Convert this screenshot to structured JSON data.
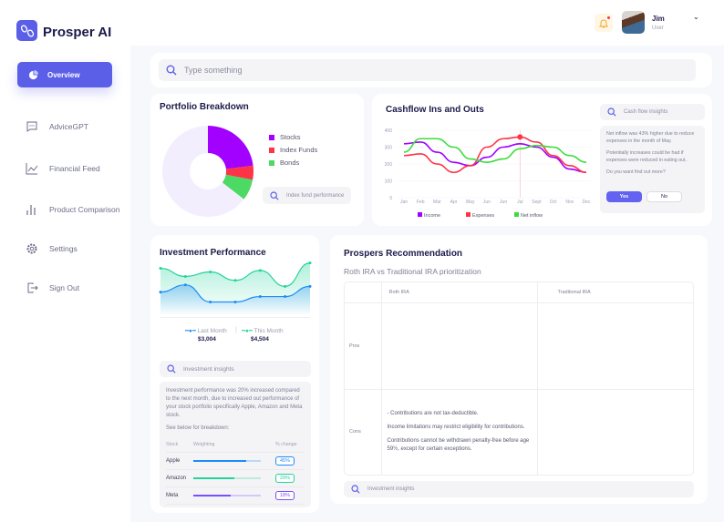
{
  "app": {
    "name": "Prosper AI"
  },
  "user": {
    "name": "Jim",
    "role": "User"
  },
  "sidebar": {
    "items": [
      {
        "label": "Overview",
        "icon": "pie-chart-icon",
        "active": true
      },
      {
        "label": "AdviceGPT",
        "icon": "chat-icon"
      },
      {
        "label": "Financial Feed",
        "icon": "line-chart-icon"
      },
      {
        "label": "Product Comparison",
        "icon": "bar-chart-icon"
      },
      {
        "label": "Settings",
        "icon": "gear-icon"
      },
      {
        "label": "Sign Out",
        "icon": "sign-out-icon"
      }
    ]
  },
  "search": {
    "placeholder": "Type something"
  },
  "portfolio": {
    "title": "Portfolio Breakdown",
    "search_placeholder": "Index fund performance"
  },
  "cashflow": {
    "title": "Cashflow Ins and Outs",
    "insights_placeholder": "Cash flow insights",
    "insight_1": "Net inflow was 43% higher due to reduce expenses in the month of May.",
    "insight_2": "Potentially increases could be had if expenses were reduced in eating out.",
    "question": "Do you want find out more?",
    "yes_label": "Yes",
    "no_label": "No"
  },
  "investment": {
    "title": "Investment Performance",
    "legend": [
      {
        "label": "Last Month",
        "value": "$3,004"
      },
      {
        "label": "This Month",
        "value": "$4,504"
      }
    ],
    "insights_placeholder": "Investment insights",
    "summary": "Investment performance was 20% increased compared to the next month, due to increased out performance of your stock portfolio specifically Apple, Amazon and Meta stock.",
    "breakdown_label": "See below for breakdown:",
    "headers": [
      "Stock",
      "Weighting",
      "% change"
    ],
    "stocks": [
      {
        "name": "Apple",
        "weighting": 0.78,
        "change": "45%",
        "color": "#1d8cf8"
      },
      {
        "name": "Amazon",
        "weighting": 0.61,
        "change": "29%",
        "color": "#22d39a"
      },
      {
        "name": "Meta",
        "weighting": 0.55,
        "change": "18%",
        "color": "#7c4dff"
      }
    ]
  },
  "recommendation": {
    "title": "Prospers Recommendation",
    "subtitle": "Roth IRA vs Traditional IRA prioritization",
    "columns": [
      "Roth IRA",
      "Traditional IRA"
    ],
    "rows": [
      {
        "label": "Pros",
        "roth": [],
        "traditional": []
      },
      {
        "label": "Cons",
        "roth": [
          "- Contributions are not tax-deductible.",
          "Income limitations may restrict eligibility for contributions.",
          "Contributions cannot be withdrawn penalty-free before age 59½, except for certain exceptions."
        ],
        "traditional": []
      }
    ],
    "insights_placeholder": "Investment insights"
  },
  "chart_data": [
    {
      "type": "pie",
      "title": "Portfolio Breakdown",
      "slices": [
        {
          "name": "Stocks",
          "value": 23,
          "color": "#a200ff"
        },
        {
          "name": "Index Funds",
          "value": 5,
          "color": "#ff3347"
        },
        {
          "name": "Bonds",
          "value": 7.5,
          "color": "#4cd964"
        }
      ],
      "remainder_color": "#f3eefe"
    },
    {
      "type": "line",
      "title": "Cashflow Ins and Outs",
      "categories": [
        "Jan",
        "Feb",
        "Mar",
        "Apr",
        "May",
        "Jun",
        "Jun",
        "Jul",
        "Sept",
        "Oct",
        "Nov",
        "Dec"
      ],
      "ylim": [
        0,
        400
      ],
      "yticks": [
        0,
        100,
        200,
        300,
        400
      ],
      "highlight": "Jul",
      "legend": "bottom",
      "series": [
        {
          "name": "Income",
          "color": "#a200ff",
          "values": [
            320,
            330,
            270,
            210,
            190,
            240,
            300,
            320,
            300,
            240,
            170,
            150
          ]
        },
        {
          "name": "Expenses",
          "color": "#ff3347",
          "values": [
            250,
            260,
            200,
            150,
            190,
            300,
            350,
            360,
            330,
            250,
            190,
            150
          ]
        },
        {
          "name": "Net inflow",
          "color": "#3ddc3d",
          "values": [
            270,
            350,
            350,
            300,
            230,
            210,
            230,
            290,
            310,
            300,
            250,
            210
          ]
        }
      ]
    },
    {
      "type": "area",
      "title": "Investment Performance",
      "series": [
        {
          "name": "Last Month",
          "color": "#1d8cf8",
          "values": [
            83,
            107,
            50,
            50,
            68,
            68,
            102
          ]
        },
        {
          "name": "This Month",
          "color": "#22d39a",
          "values": [
            162,
            135,
            150,
            122,
            155,
            102,
            180
          ]
        }
      ]
    }
  ]
}
